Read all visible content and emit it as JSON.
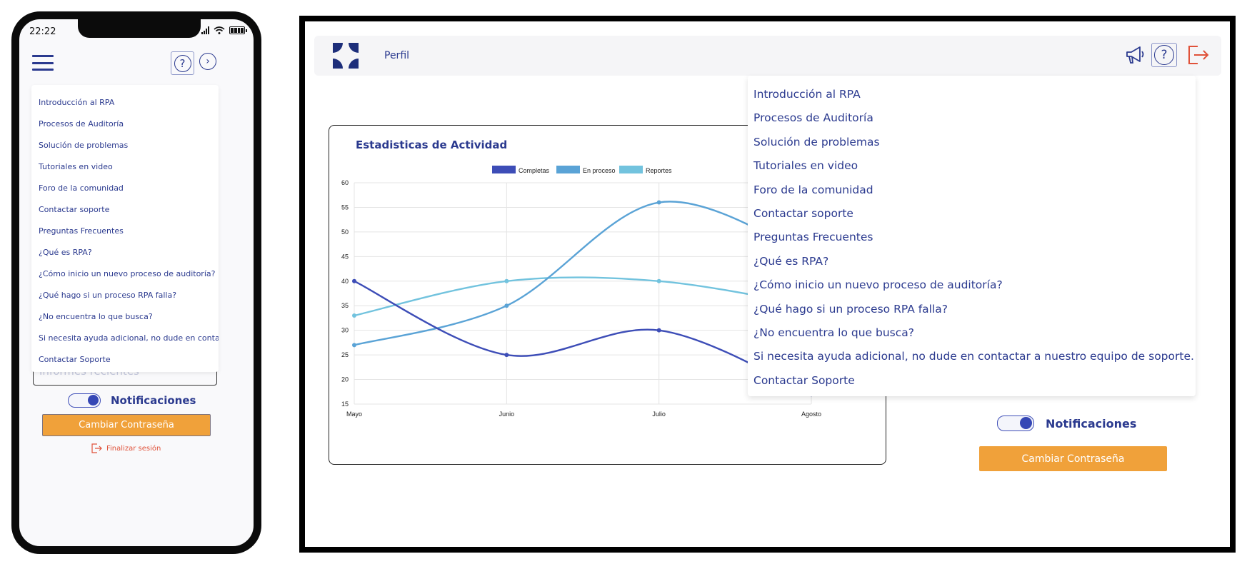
{
  "status_bar": {
    "time": "22:22"
  },
  "menu_items": [
    "Introducción al RPA",
    "Procesos de Auditoría",
    "Solución de problemas",
    "Tutoriales en video",
    "Foro de la comunidad",
    "Contactar soporte",
    "Preguntas Frecuentes",
    "¿Qué es RPA?",
    "¿Cómo inicio un nuevo proceso de auditoría?",
    "¿Qué hago si un proceso RPA falla?",
    "¿No encuentra lo que busca?",
    "Si necesita ayuda adicional, no dude en contactar a nuestro equipo de soporte.",
    "Contactar Soporte"
  ],
  "mobile": {
    "partial_input_text": "Informes recientes",
    "notifications_label": "Notificaciones",
    "change_password_label": "Cambiar Contraseña",
    "logout_label": "Finalizar sesión"
  },
  "desktop": {
    "nav": {
      "perfil_label": "Perfil"
    },
    "notifications_label": "Notificaciones",
    "change_password_label": "Cambiar Contraseña"
  },
  "colors": {
    "primary": "#2b3a8f",
    "accent_orange": "#f0a13a",
    "logout_red": "#e0523a",
    "series_completas": "#3d4db7",
    "series_en_proceso": "#5aa3d6",
    "series_reportes": "#72c3de"
  },
  "icons": {
    "menu": "hamburger-icon",
    "help": "question-circle-icon",
    "next": "chevron-right-circle-icon",
    "announce": "megaphone-icon",
    "logout": "logout-icon"
  },
  "toggles": {
    "notifications_on": true
  },
  "chart_data": {
    "type": "line",
    "title": "Estadisticas de Actividad",
    "categories": [
      "Mayo",
      "Junio",
      "Julio",
      "Agosto"
    ],
    "series": [
      {
        "name": "Completas",
        "values": [
          40,
          25,
          30,
          17
        ]
      },
      {
        "name": "En proceso",
        "values": [
          27,
          35,
          56,
          45
        ]
      },
      {
        "name": "Reportes",
        "values": [
          33,
          40,
          40,
          35
        ]
      }
    ],
    "ylim": [
      15,
      60
    ],
    "yticks": [
      15,
      20,
      25,
      30,
      35,
      40,
      45,
      50,
      55,
      60
    ],
    "grid": true,
    "legend_position": "top-center",
    "curve": "smooth"
  }
}
